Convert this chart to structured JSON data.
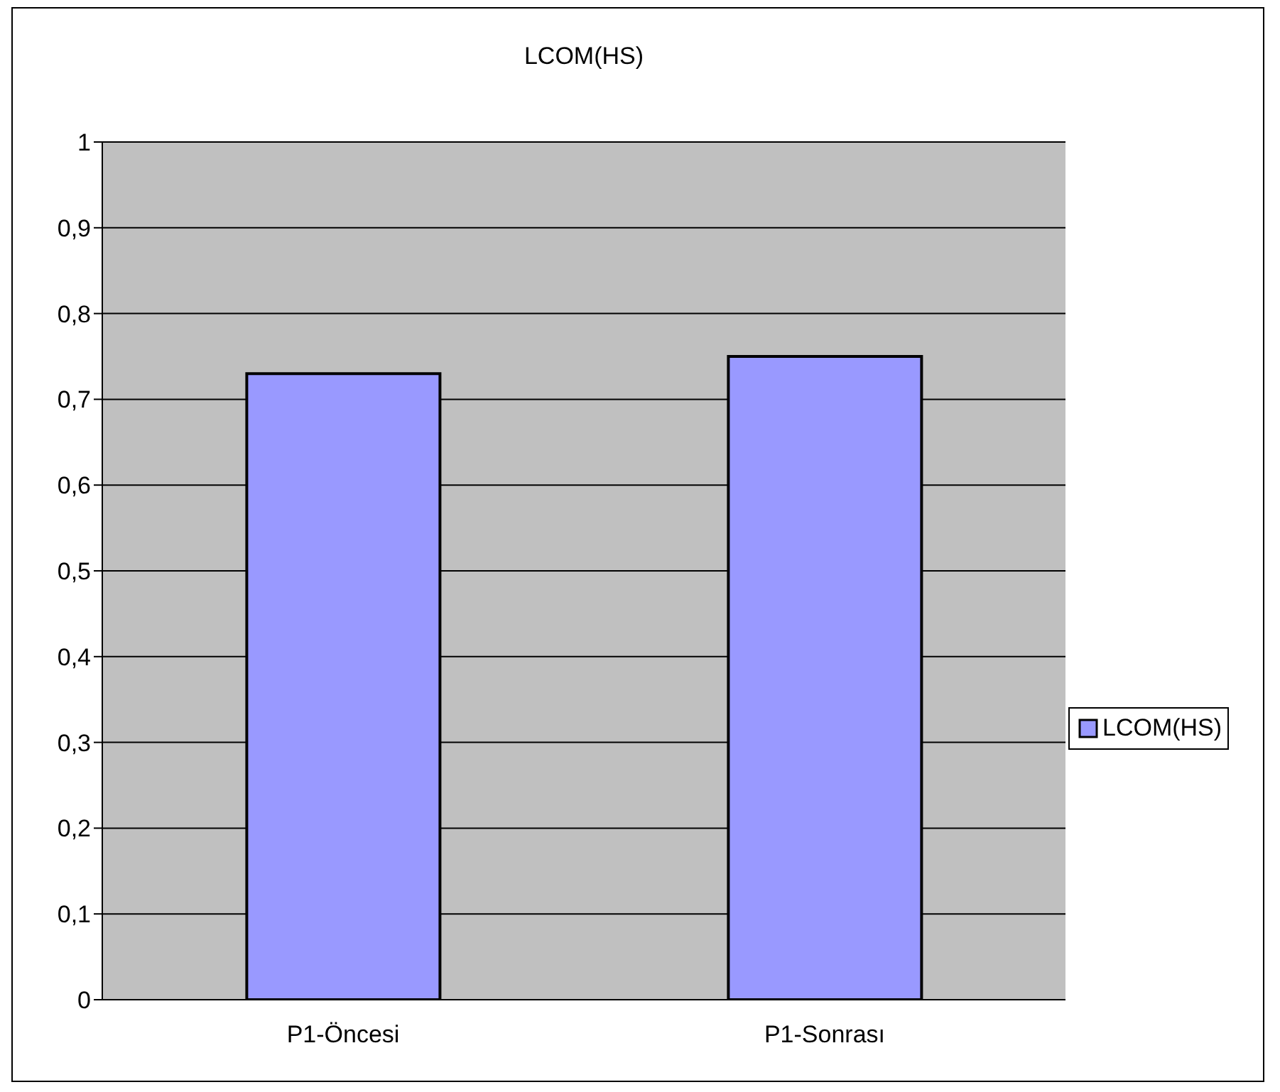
{
  "chart_data": {
    "type": "bar",
    "title": "LCOM(HS)",
    "categories": [
      "P1-Öncesi",
      "P1-Sonrası"
    ],
    "series": [
      {
        "name": "LCOM(HS)",
        "color": "#9999ff",
        "values": [
          0.73,
          0.75
        ]
      }
    ],
    "ylim": [
      0,
      1
    ],
    "yticks": [
      0,
      {
        "value": 0.1,
        "label": "0,1"
      },
      {
        "value": 0.2,
        "label": "0,2"
      },
      {
        "value": 0.3,
        "label": "0,3"
      },
      {
        "value": 0.4,
        "label": "0,4"
      },
      {
        "value": 0.5,
        "label": "0,5"
      },
      {
        "value": 0.6,
        "label": "0,6"
      },
      {
        "value": 0.7,
        "label": "0,7"
      },
      {
        "value": 0.8,
        "label": "0,8"
      },
      {
        "value": 0.9,
        "label": "0,9"
      },
      1
    ],
    "grid": "y",
    "legend": "right"
  }
}
